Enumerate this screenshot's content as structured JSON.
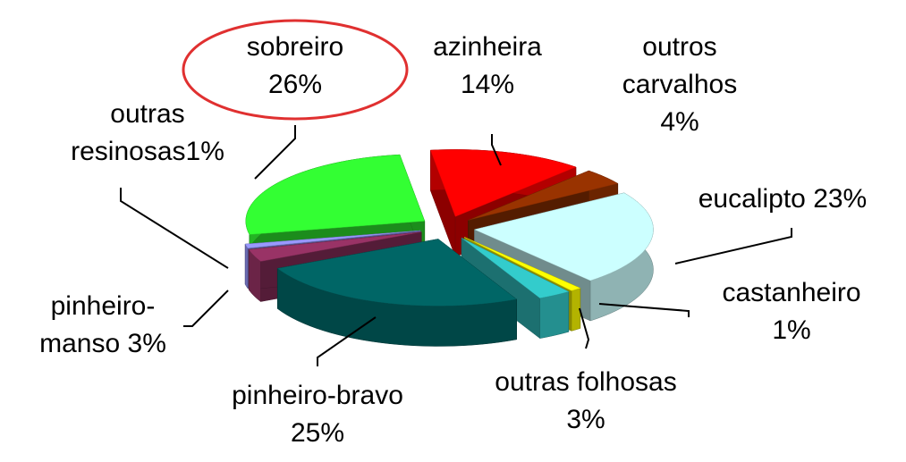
{
  "chart_data": {
    "type": "pie",
    "categories": [
      "azinheira",
      "outros carvalhos",
      "eucalipto",
      "castanheiro",
      "outras folhosas",
      "pinheiro-bravo",
      "pinheiro-manso",
      "outras resinosas",
      "sobreiro"
    ],
    "values": [
      14,
      4,
      23,
      1,
      3,
      25,
      3,
      1,
      26
    ],
    "value_labels": [
      "14%",
      "4%",
      "23%",
      "1%",
      "3%",
      "25%",
      "3%",
      "1%",
      "26%"
    ],
    "colors": [
      "#ff0000",
      "#993300",
      "#ccffff",
      "#ffff00",
      "#33cccc",
      "#006666",
      "#993366",
      "#9999ff",
      "#33ff33"
    ]
  }
}
